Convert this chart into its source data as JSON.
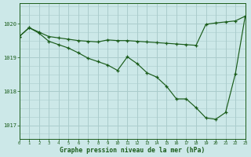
{
  "xlabel": "Graphe pression niveau de la mer (hPa)",
  "bg_color": "#cce8e8",
  "plot_bg_color": "#cce8e8",
  "grid_color": "#aacccc",
  "line_color": "#1a5c1a",
  "xlim": [
    0,
    23
  ],
  "ylim": [
    1016.6,
    1020.6
  ],
  "yticks": [
    1017,
    1018,
    1019,
    1020
  ],
  "xticks": [
    0,
    1,
    2,
    3,
    4,
    5,
    6,
    7,
    8,
    9,
    10,
    11,
    12,
    13,
    14,
    15,
    16,
    17,
    18,
    19,
    20,
    21,
    22,
    23
  ],
  "series1_x": [
    0,
    1,
    2,
    3,
    4,
    5,
    6,
    7,
    8,
    9,
    10,
    11,
    12,
    13,
    14,
    15,
    16,
    17,
    18,
    19,
    20,
    21,
    22,
    23
  ],
  "series1_y": [
    1019.62,
    1019.88,
    1019.75,
    1019.62,
    1019.58,
    1019.54,
    1019.5,
    1019.48,
    1019.46,
    1019.52,
    1019.5,
    1019.5,
    1019.48,
    1019.46,
    1019.44,
    1019.42,
    1019.4,
    1019.38,
    1019.36,
    1019.98,
    1020.02,
    1020.05,
    1020.08,
    1020.22
  ],
  "series2_x": [
    0,
    1,
    2,
    3,
    4,
    5,
    6,
    7,
    8,
    9,
    10,
    11,
    12,
    13,
    14,
    15,
    16,
    17,
    18,
    19,
    20,
    21,
    22,
    23
  ],
  "series2_y": [
    1019.62,
    1019.88,
    1019.72,
    1019.48,
    1019.38,
    1019.28,
    1019.14,
    1018.98,
    1018.88,
    1018.78,
    1018.62,
    1019.02,
    1018.82,
    1018.55,
    1018.42,
    1018.15,
    1017.78,
    1017.78,
    1017.52,
    1017.22,
    1017.18,
    1017.38,
    1018.52,
    1020.22
  ]
}
